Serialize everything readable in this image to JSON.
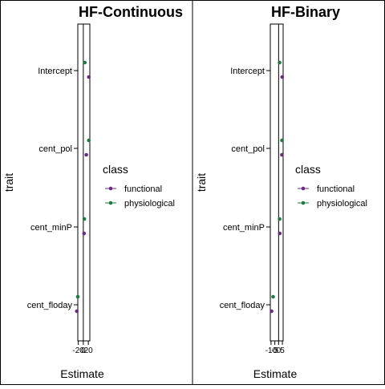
{
  "chart_data": [
    {
      "type": "scatter",
      "title": "HF-Continuous",
      "xlabel": "Estimate",
      "ylabel": "trait",
      "categories": [
        "Intercept",
        "cent_pol",
        "cent_minP",
        "cent_floday"
      ],
      "x_ticks": [
        "-20",
        "0",
        "20"
      ],
      "xlim": [
        -22,
        26
      ],
      "legend_title": "class",
      "legend_position": "right",
      "series": [
        {
          "name": "functional",
          "color": "#6a2c80",
          "values": [
            22,
            12,
            3,
            -26
          ]
        },
        {
          "name": "physiological",
          "color": "#1e7a40",
          "values": [
            6,
            22,
            4,
            -22
          ]
        }
      ]
    },
    {
      "type": "scatter",
      "title": "HF-Binary",
      "xlabel": "Estimate",
      "ylabel": "trait",
      "categories": [
        "Intercept",
        "cent_pol",
        "cent_minP",
        "cent_floday"
      ],
      "x_ticks": [
        "-10",
        "-5",
        "0",
        "5"
      ],
      "xlim": [
        -11,
        6
      ],
      "legend_title": "class",
      "legend_position": "right",
      "series": [
        {
          "name": "functional",
          "color": "#6a2c80",
          "values": [
            4.8,
            4.3,
            1.5,
            -9.3
          ]
        },
        {
          "name": "physiological",
          "color": "#1e7a40",
          "values": [
            1.3,
            4.5,
            1.3,
            -7.3
          ]
        }
      ]
    }
  ]
}
